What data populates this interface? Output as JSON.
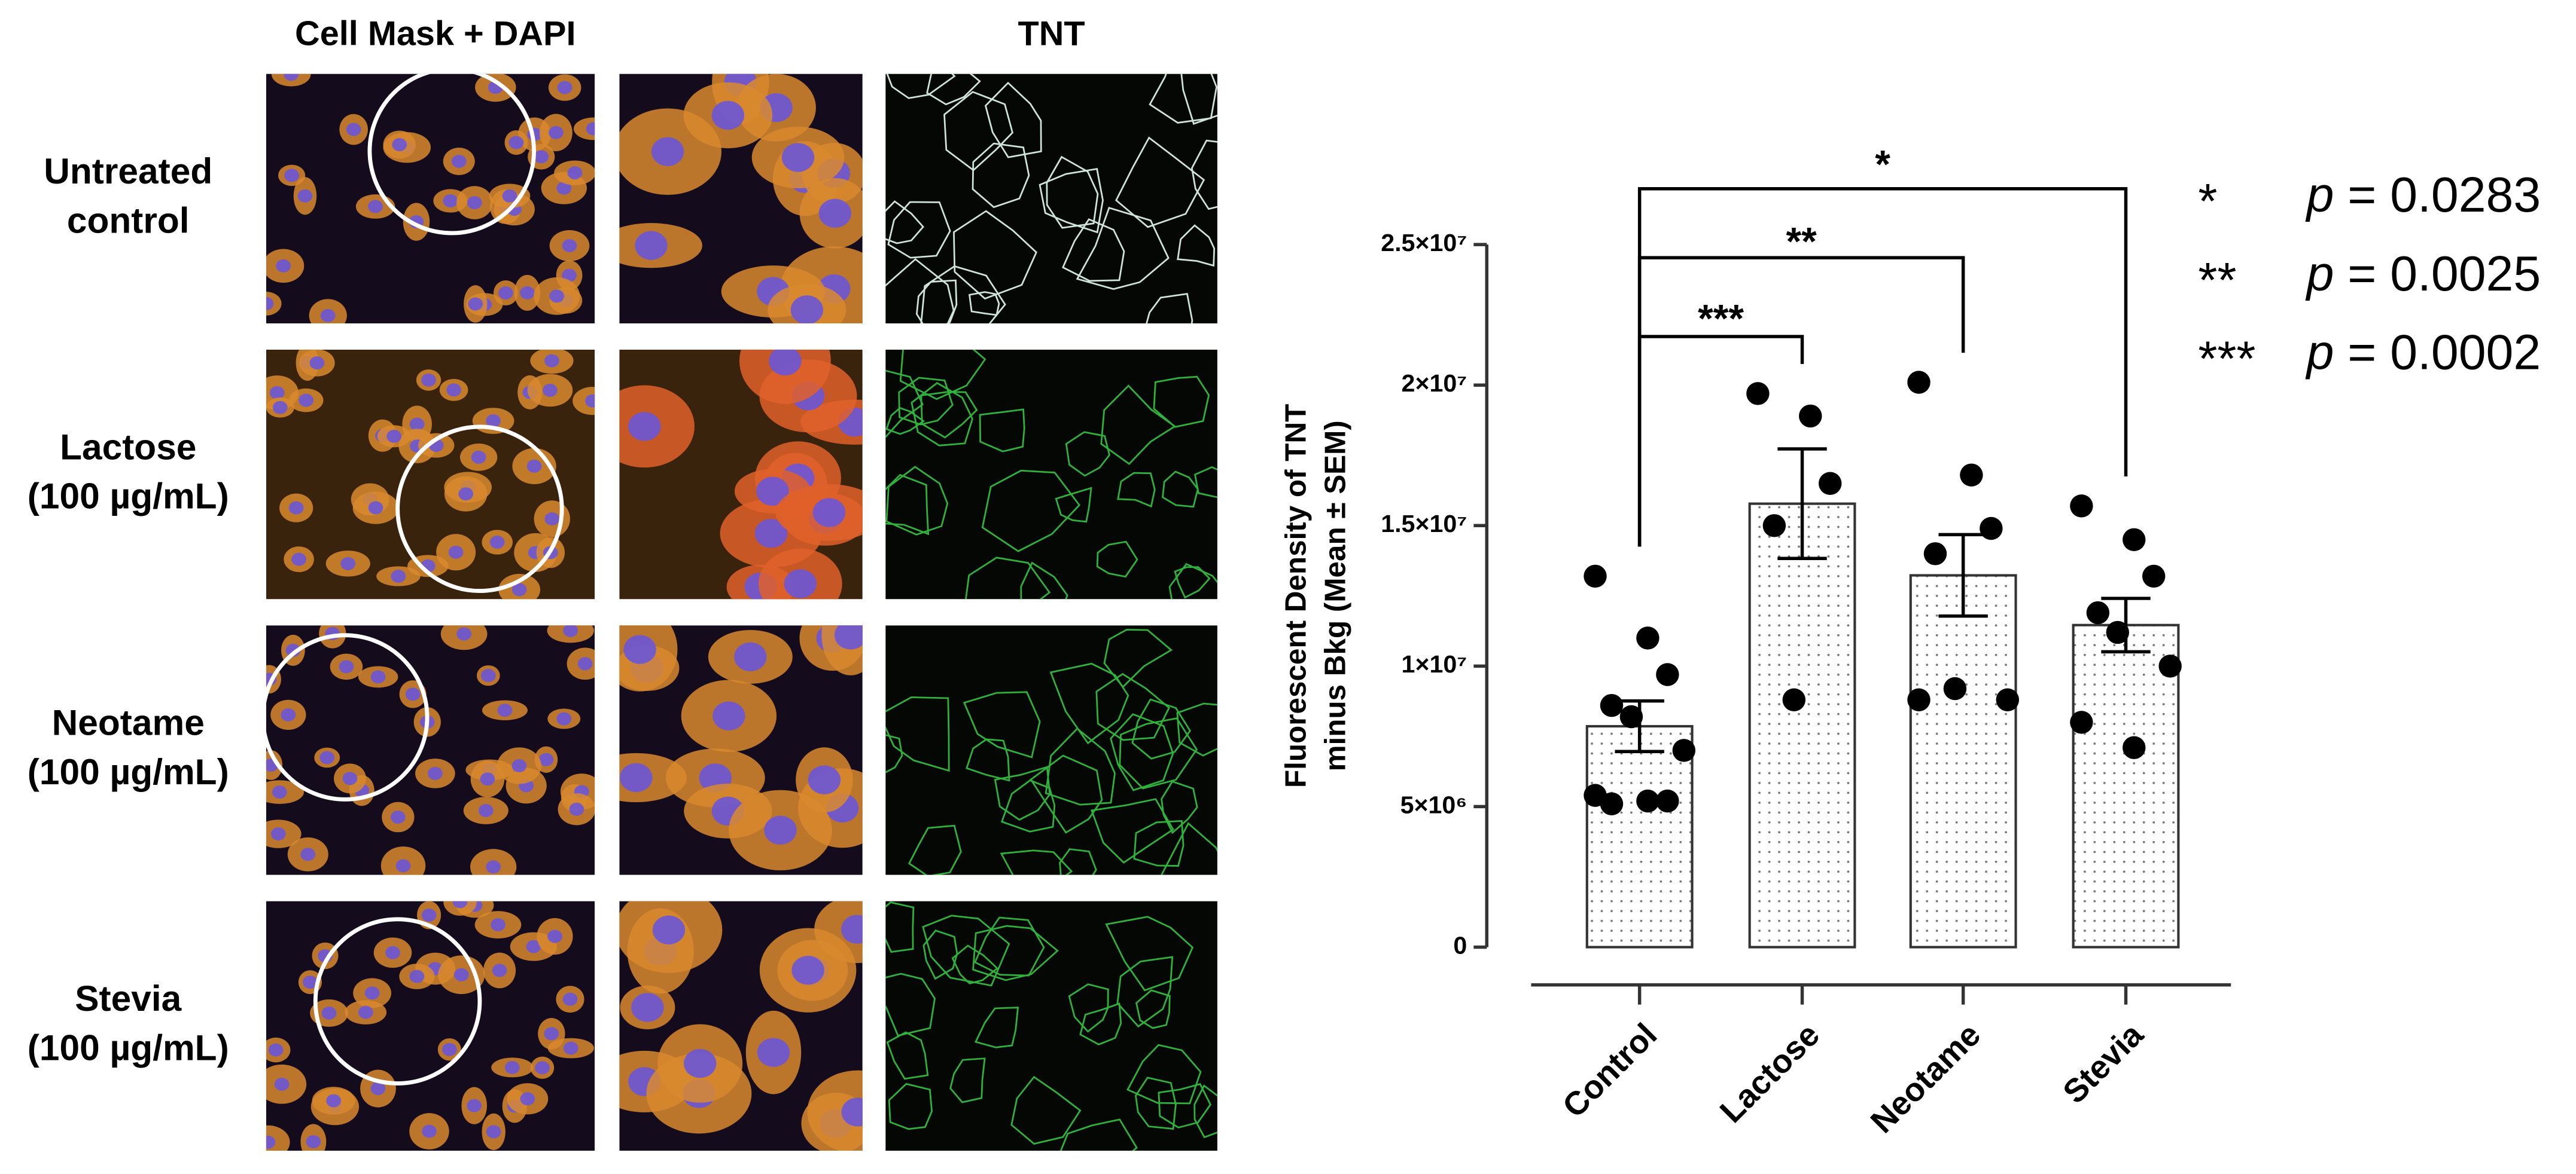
{
  "panel": {
    "column_headers": [
      "Cell Mask + DAPI",
      "TNT"
    ],
    "row_labels": [
      [
        "Untreated",
        "control"
      ],
      [
        "Lactose",
        "(100 µg/mL)"
      ],
      [
        "Neotame",
        "(100 µg/mL)"
      ],
      [
        "Stevia",
        "(100 µg/mL)"
      ]
    ]
  },
  "chart_data": {
    "type": "bar",
    "y_label": [
      "Fluorescent Density of TNT",
      "minus Bkg (Mean ± SEM)"
    ],
    "categories": [
      "Control",
      "Lactose",
      "Neotame",
      "Stevia"
    ],
    "values": [
      7860000,
      15780000,
      13230000,
      11460000
    ],
    "errors": [
      900000,
      1950000,
      1450000,
      950000
    ],
    "points": [
      [
        13200000,
        11000000,
        9700000,
        8600000,
        8200000,
        7000000,
        5400000,
        5200000,
        5200000,
        5100000
      ],
      [
        19700000,
        18900000,
        16500000,
        15000000,
        8800000
      ],
      [
        20100000,
        16800000,
        14900000,
        14000000,
        9200000,
        8800000,
        8800000
      ],
      [
        15700000,
        14500000,
        13200000,
        11900000,
        11200000,
        10000000,
        8000000,
        7100000
      ]
    ],
    "color": "#ffffff",
    "point_color": "#000000",
    "ylim": [
      0,
      25000000
    ],
    "yticks": [
      0,
      {
        "value": 5000000,
        "label": "5×10⁶"
      },
      {
        "value": 10000000,
        "label": "1×10⁷"
      },
      {
        "value": 15000000,
        "label": "1.5×10⁷"
      },
      {
        "value": 20000000,
        "label": "2×10⁷"
      },
      {
        "value": 25000000,
        "label": "2.5×10⁷"
      }
    ],
    "significance": [
      {
        "pair": [
          "Control",
          "Stevia"
        ],
        "label": "*"
      },
      {
        "pair": [
          "Control",
          "Neotame"
        ],
        "label": "**"
      },
      {
        "pair": [
          "Control",
          "Lactose"
        ],
        "label": "***"
      }
    ],
    "legend": [
      {
        "stars": "*",
        "p": "p",
        "text": "= 0.0283"
      },
      {
        "stars": "**",
        "p": "p",
        "text": "= 0.0025"
      },
      {
        "stars": "***",
        "p": "p",
        "text": "= 0.0002"
      }
    ]
  }
}
